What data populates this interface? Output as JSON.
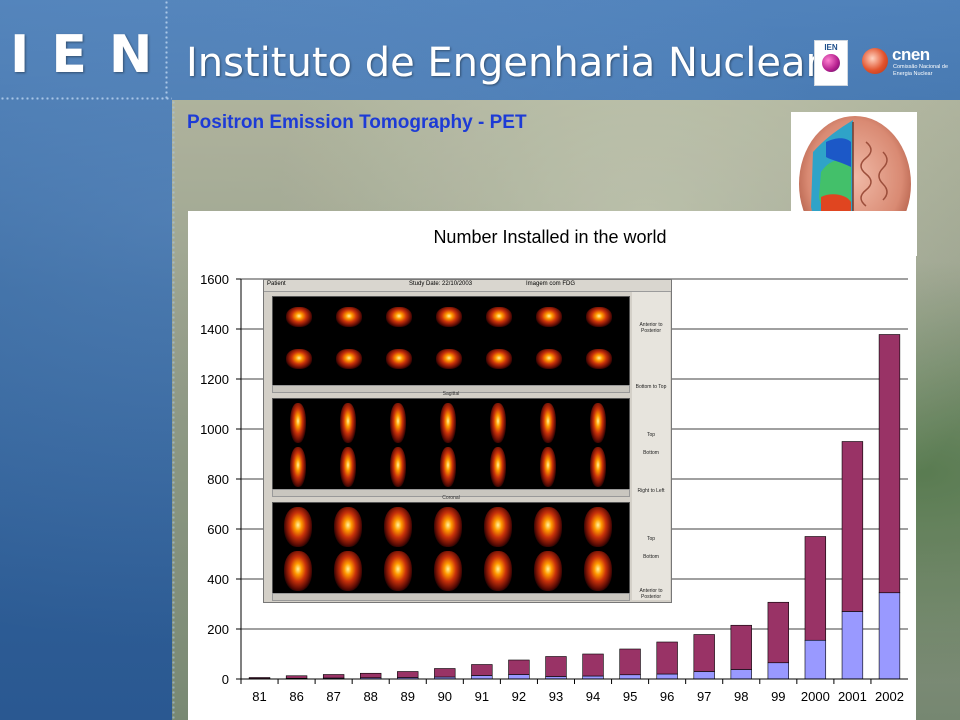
{
  "header": {
    "logo_text": "IEN",
    "institute_name": "Instituto de Engenharia Nuclear",
    "partner_logo_ien": "IEN",
    "partner_logo_cnen": "cnen",
    "partner_logo_cnen_sub": "Comissão Nacional de Energia Nuclear"
  },
  "slide": {
    "title": "Positron Emission Tomography - PET"
  },
  "pet_screenshot": {
    "patient_label": "Patient",
    "study_date": "Study Date: 22/10/2003",
    "study_desc": "Imagem com FDG",
    "row2_label": "Sagittal",
    "row3_label": "Coronal",
    "side_labels": [
      "Anterior to Posterior",
      "Bottom to Top",
      "Top",
      "Bottom",
      "Right to Left",
      "Top",
      "Bottom",
      "Anterior to Posterior"
    ]
  },
  "colors": {
    "series_total": "#993366",
    "series_usa": "#9999ff",
    "title_blue": "#1d3bd6"
  },
  "chart_data": {
    "type": "bar",
    "stacked": true,
    "title": "Number Installed in the world",
    "categories": [
      "81",
      "86",
      "87",
      "88",
      "89",
      "90",
      "91",
      "92",
      "93",
      "94",
      "95",
      "96",
      "97",
      "98",
      "99",
      "2000",
      "2001",
      "2002"
    ],
    "series": [
      {
        "color": "#9999ff",
        "values": [
          2,
          3,
          4,
          5,
          6,
          8,
          14,
          18,
          10,
          12,
          17,
          20,
          30,
          38,
          65,
          155,
          270,
          345
        ]
      },
      {
        "color": "#993366",
        "values": [
          4,
          10,
          14,
          18,
          24,
          34,
          44,
          58,
          80,
          88,
          103,
          128,
          148,
          177,
          242,
          415,
          680,
          1033
        ]
      }
    ],
    "ylim": [
      0,
      1600
    ],
    "yticks": [
      0,
      200,
      400,
      600,
      800,
      1000,
      1200,
      1400,
      1600
    ],
    "grid": true,
    "xlabel": "",
    "ylabel": ""
  }
}
